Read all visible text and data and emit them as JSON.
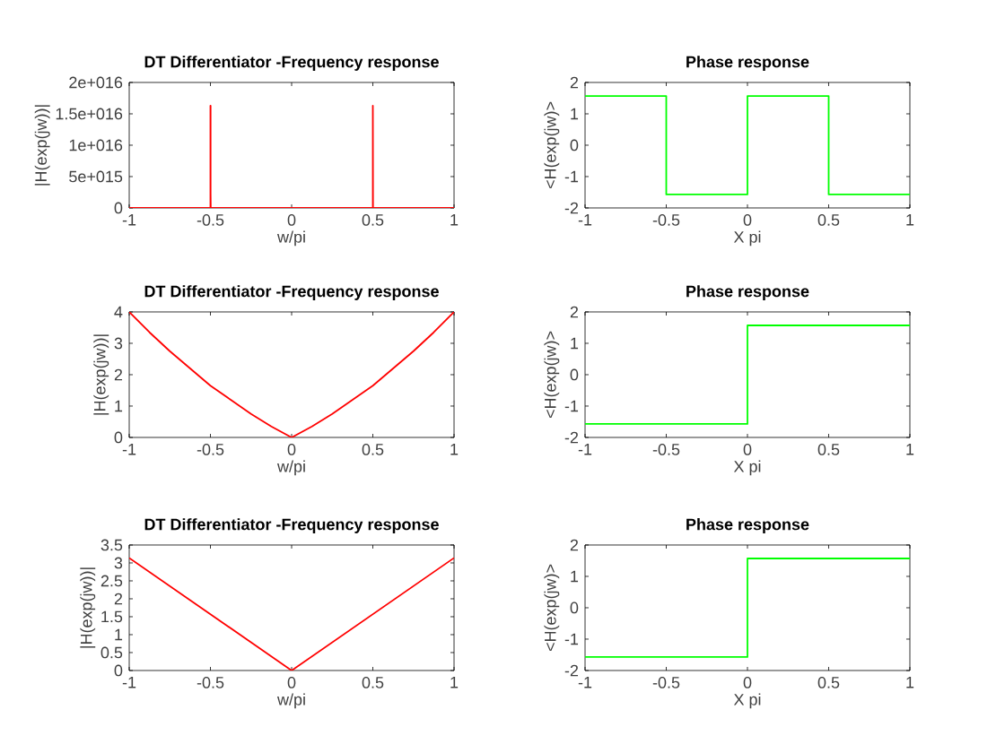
{
  "chart_data": [
    {
      "type": "line",
      "title": "DT Differentiator -Frequency response",
      "xlabel": "w/pi",
      "ylabel": "|H(exp(jw))|",
      "x": [
        -1,
        -0.501,
        -0.5,
        -0.5,
        -0.499,
        -0.499,
        -0.498,
        0.499,
        0.5,
        0.5,
        0.501,
        1
      ],
      "series": [
        {
          "color": "#ff0000",
          "values": [
            0,
            0,
            0,
            1.63e+16,
            1.63e+16,
            2300000000000000.0,
            0,
            0,
            0,
            1.63e+16,
            0,
            0
          ]
        }
      ],
      "xlim": [
        -1,
        1
      ],
      "ylim": [
        0,
        2e+16
      ],
      "xticks": [
        -1,
        -0.5,
        0,
        0.5,
        1
      ],
      "yticks": [
        0,
        {
          "value": 5000000000000000.0,
          "label": "5e+015"
        },
        {
          "value": 1e+16,
          "label": "1e+016"
        },
        {
          "value": 1.5e+16,
          "label": "1.5e+016"
        },
        {
          "value": 2e+16,
          "label": "2e+016"
        }
      ]
    },
    {
      "type": "line",
      "title": "Phase response",
      "xlabel": "X pi",
      "ylabel": "<H(exp(jw)>",
      "x": [
        -1,
        -0.5,
        -0.5,
        0,
        0,
        0.5,
        0.5,
        1
      ],
      "series": [
        {
          "color": "#00ff00",
          "values": [
            1.57,
            1.57,
            -1.57,
            -1.57,
            1.57,
            1.57,
            -1.57,
            -1.57
          ]
        }
      ],
      "xlim": [
        -1,
        1
      ],
      "ylim": [
        -2,
        2
      ],
      "xticks": [
        -1,
        -0.5,
        0,
        0.5,
        1
      ],
      "yticks": [
        -2,
        -1,
        0,
        1,
        2
      ]
    },
    {
      "type": "line",
      "title": "DT Differentiator -Frequency response",
      "xlabel": "w/pi",
      "ylabel": "|H(exp(jw))|",
      "x": [
        -1,
        -0.875,
        -0.75,
        -0.625,
        -0.5,
        -0.375,
        -0.25,
        -0.125,
        0,
        0.125,
        0.25,
        0.375,
        0.5,
        0.625,
        0.75,
        0.875,
        1
      ],
      "series": [
        {
          "color": "#ff0000",
          "values": [
            4,
            3.35,
            2.75,
            2.2,
            1.65,
            1.2,
            0.75,
            0.35,
            0,
            0.35,
            0.75,
            1.2,
            1.65,
            2.2,
            2.75,
            3.35,
            4
          ]
        }
      ],
      "xlim": [
        -1,
        1
      ],
      "ylim": [
        0,
        4
      ],
      "xticks": [
        -1,
        -0.5,
        0,
        0.5,
        1
      ],
      "yticks": [
        0,
        1,
        2,
        3,
        4
      ]
    },
    {
      "type": "line",
      "title": "Phase response",
      "xlabel": "X pi",
      "ylabel": "<H(exp(jw)>",
      "x": [
        -1,
        0,
        0,
        1
      ],
      "series": [
        {
          "color": "#00ff00",
          "values": [
            -1.57,
            -1.57,
            1.57,
            1.57
          ]
        }
      ],
      "xlim": [
        -1,
        1
      ],
      "ylim": [
        -2,
        2
      ],
      "xticks": [
        -1,
        -0.5,
        0,
        0.5,
        1
      ],
      "yticks": [
        -2,
        -1,
        0,
        1,
        2
      ]
    },
    {
      "type": "line",
      "title": "DT Differentiator -Frequency response",
      "xlabel": "w/pi",
      "ylabel": "|H(exp(jw))|",
      "x": [
        -1,
        0,
        1
      ],
      "series": [
        {
          "color": "#ff0000",
          "values": [
            3.14,
            0,
            3.14
          ]
        }
      ],
      "xlim": [
        -1,
        1
      ],
      "ylim": [
        0,
        3.5
      ],
      "xticks": [
        -1,
        -0.5,
        0,
        0.5,
        1
      ],
      "yticks": [
        0,
        0.5,
        1,
        1.5,
        2,
        2.5,
        3,
        3.5
      ]
    },
    {
      "type": "line",
      "title": "Phase response",
      "xlabel": "X pi",
      "ylabel": "<H(exp(jw)>",
      "x": [
        -1,
        0,
        0,
        1
      ],
      "series": [
        {
          "color": "#00ff00",
          "values": [
            -1.57,
            -1.57,
            1.57,
            1.57
          ]
        }
      ],
      "xlim": [
        -1,
        1
      ],
      "ylim": [
        -2,
        2
      ],
      "xticks": [
        -1,
        -0.5,
        0,
        0.5,
        1
      ],
      "yticks": [
        -2,
        -1,
        0,
        1,
        2
      ]
    }
  ]
}
